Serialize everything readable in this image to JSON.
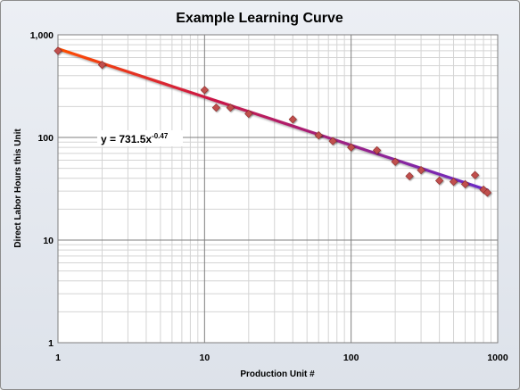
{
  "chart_data": {
    "type": "scatter",
    "title": "Example Learning Curve",
    "xlabel": "Production Unit #",
    "ylabel": "Direct Labor Hours this Unit",
    "x_scale": "log",
    "y_scale": "log",
    "xlim": [
      1,
      1000
    ],
    "ylim": [
      1,
      1000
    ],
    "x_ticks": [
      "1",
      "10",
      "100",
      "1000"
    ],
    "y_ticks": [
      "1",
      "10",
      "100",
      "1,000"
    ],
    "grid": true,
    "series": [
      {
        "type": "scatter",
        "marker": "diamond",
        "color": "#c0504d",
        "x": [
          1,
          2,
          10,
          12,
          15,
          20,
          40,
          60,
          75,
          100,
          150,
          200,
          250,
          300,
          400,
          500,
          600,
          700,
          800,
          850
        ],
        "y": [
          700,
          510,
          290,
          195,
          195,
          170,
          150,
          105,
          92,
          80,
          75,
          58,
          42,
          48,
          38,
          37,
          35,
          43,
          31,
          29
        ]
      },
      {
        "type": "line",
        "trendline": "power",
        "coefficient": 731.5,
        "exponent": -0.47,
        "x_range": [
          1,
          850
        ],
        "color_start": "#ff4d00",
        "color_end": "#6a2cc8"
      }
    ],
    "annotation": {
      "text": "y = 731.5x",
      "superscript": "-0.47"
    }
  },
  "colors": {
    "background_top": "#eceff4",
    "background_bottom": "#dde2ea",
    "plot_background": "#ffffff",
    "grid_major": "#7f7f7f",
    "grid_minor": "#d4d4d4",
    "marker": "#c0504d"
  }
}
